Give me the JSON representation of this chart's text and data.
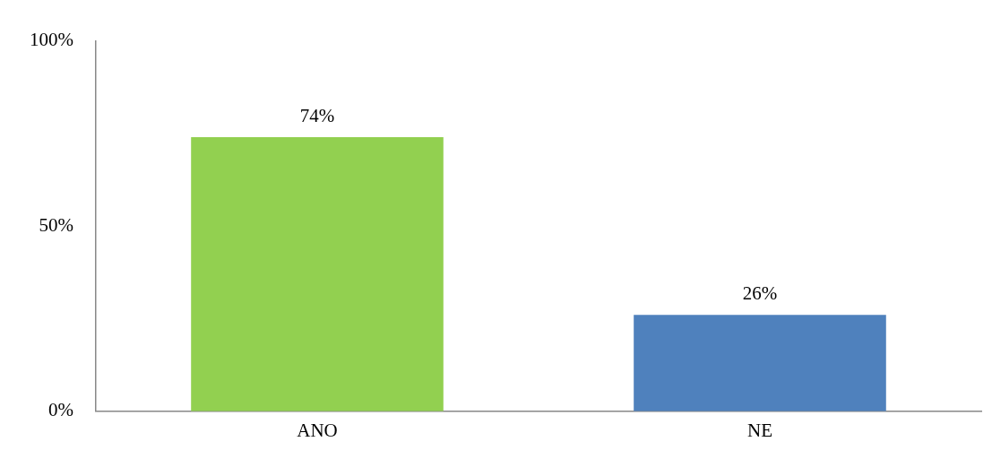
{
  "chart_data": {
    "type": "bar",
    "categories": [
      "ANO",
      "NE"
    ],
    "values": [
      74,
      26
    ],
    "colors": [
      "#92d050",
      "#4f81bd"
    ],
    "value_labels": [
      "74%",
      "26%"
    ],
    "ylim": [
      0,
      100
    ],
    "yticks": [
      {
        "value": 0,
        "label": "0%"
      },
      {
        "value": 50,
        "label": "50%"
      },
      {
        "value": 100,
        "label": "100%"
      }
    ],
    "grid": false,
    "legend": false
  }
}
